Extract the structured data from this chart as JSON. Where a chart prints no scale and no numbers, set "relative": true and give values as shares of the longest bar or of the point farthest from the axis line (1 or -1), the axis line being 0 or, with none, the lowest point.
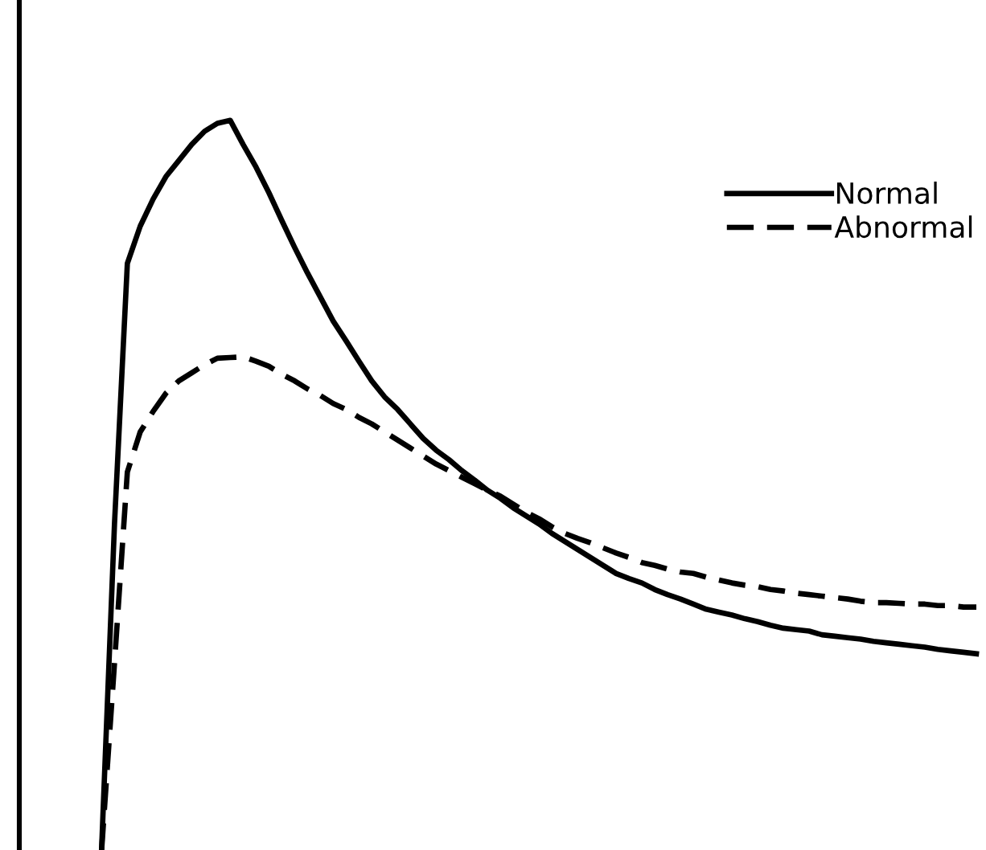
{
  "chart_data": {
    "type": "line",
    "relative": true,
    "legend": "top right",
    "categories": [
      null,
      null,
      null,
      null,
      null,
      null,
      null,
      null,
      null,
      null,
      null,
      null,
      null,
      null,
      null,
      null,
      null,
      null,
      null,
      null,
      null,
      null,
      null,
      null,
      null,
      null,
      null,
      null,
      null,
      null,
      null,
      null,
      null,
      null,
      null,
      null,
      null,
      null,
      null,
      null,
      null,
      null,
      null,
      null,
      null,
      null,
      null,
      null,
      null,
      null,
      null,
      null,
      null,
      null,
      null,
      null,
      null,
      null,
      null,
      null,
      null,
      null,
      null,
      null,
      null,
      null,
      null,
      null,
      null
    ],
    "series": [
      {
        "name": "Normal",
        "color": "#000000",
        "line_style": "solid",
        "values": [
          0.002,
          0.447,
          0.804,
          0.855,
          0.892,
          0.923,
          0.945,
          0.967,
          0.985,
          0.996,
          1.0,
          0.967,
          0.936,
          0.901,
          0.863,
          0.826,
          0.791,
          0.758,
          0.725,
          0.698,
          0.67,
          0.643,
          0.621,
          0.604,
          0.584,
          0.564,
          0.548,
          0.535,
          0.52,
          0.507,
          0.493,
          0.482,
          0.469,
          0.458,
          0.447,
          0.434,
          0.423,
          0.412,
          0.401,
          0.39,
          0.379,
          0.372,
          0.366,
          0.357,
          0.35,
          0.344,
          0.337,
          0.33,
          0.326,
          0.322,
          0.317,
          0.313,
          0.308,
          0.304,
          0.302,
          0.3,
          0.295,
          0.293,
          0.291,
          0.289,
          0.286,
          0.284,
          0.282,
          0.28,
          0.278,
          0.275,
          0.273,
          0.271,
          0.269
        ]
      },
      {
        "name": "Abnormal",
        "color": "#000000",
        "line_style": "dashed",
        "values": [
          0.0,
          0.256,
          0.518,
          0.573,
          0.601,
          0.626,
          0.643,
          0.654,
          0.665,
          0.674,
          0.675,
          0.676,
          0.67,
          0.663,
          0.652,
          0.643,
          0.632,
          0.623,
          0.612,
          0.604,
          0.593,
          0.584,
          0.573,
          0.562,
          0.551,
          0.54,
          0.529,
          0.52,
          0.511,
          0.502,
          0.493,
          0.485,
          0.474,
          0.463,
          0.454,
          0.443,
          0.434,
          0.427,
          0.421,
          0.414,
          0.407,
          0.401,
          0.394,
          0.39,
          0.385,
          0.381,
          0.379,
          0.374,
          0.37,
          0.366,
          0.363,
          0.361,
          0.357,
          0.355,
          0.352,
          0.35,
          0.348,
          0.346,
          0.344,
          0.341,
          0.339,
          0.339,
          0.338,
          0.337,
          0.337,
          0.335,
          0.335,
          0.333,
          0.333
        ]
      }
    ]
  }
}
